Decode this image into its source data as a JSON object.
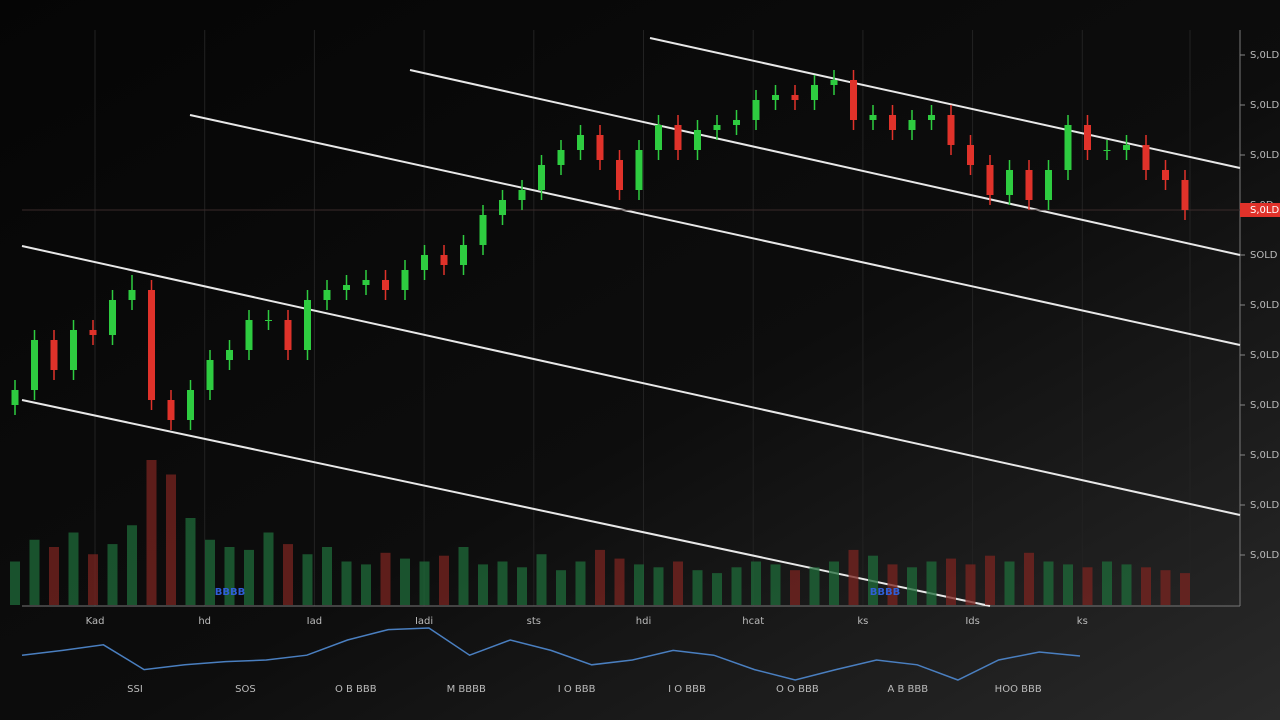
{
  "chart_data": {
    "type": "candlestick",
    "open": [
      40,
      43,
      53,
      47,
      55,
      54,
      61,
      63,
      41,
      37,
      43,
      49,
      51,
      57,
      57,
      51,
      61,
      63,
      64,
      65,
      63,
      67,
      70,
      68,
      72,
      78,
      81,
      83,
      88,
      91,
      94,
      89,
      83,
      91,
      96,
      91,
      95,
      96,
      97,
      101,
      102,
      101,
      104,
      105,
      97,
      98,
      95,
      97,
      98,
      92,
      88,
      82,
      87,
      81,
      87,
      96,
      91,
      91,
      92,
      87,
      85
    ],
    "high": [
      45,
      55,
      55,
      57,
      57,
      63,
      66,
      65,
      43,
      45,
      51,
      53,
      59,
      59,
      59,
      63,
      65,
      66,
      67,
      67,
      69,
      72,
      72,
      74,
      80,
      83,
      85,
      90,
      93,
      96,
      96,
      91,
      93,
      98,
      98,
      97,
      98,
      99,
      103,
      104,
      104,
      106,
      107,
      107,
      100,
      100,
      99,
      100,
      100,
      94,
      90,
      89,
      89,
      89,
      98,
      98,
      93,
      94,
      94,
      89,
      87
    ],
    "low": [
      38,
      41,
      45,
      45,
      52,
      52,
      59,
      39,
      35,
      35,
      41,
      47,
      49,
      55,
      49,
      49,
      59,
      61,
      62,
      61,
      61,
      65,
      66,
      66,
      70,
      76,
      79,
      81,
      86,
      89,
      87,
      81,
      81,
      89,
      89,
      89,
      93,
      94,
      95,
      99,
      99,
      99,
      102,
      95,
      95,
      93,
      93,
      95,
      90,
      86,
      80,
      80,
      79,
      79,
      85,
      89,
      89,
      89,
      85,
      83,
      77
    ],
    "close": [
      43,
      53,
      47,
      55,
      54,
      61,
      63,
      41,
      37,
      43,
      49,
      51,
      57,
      57,
      51,
      61,
      63,
      64,
      65,
      63,
      67,
      70,
      68,
      72,
      78,
      81,
      83,
      88,
      91,
      94,
      89,
      83,
      91,
      96,
      91,
      95,
      96,
      97,
      101,
      102,
      101,
      104,
      105,
      97,
      98,
      95,
      97,
      98,
      92,
      88,
      82,
      87,
      81,
      87,
      96,
      91,
      91,
      92,
      87,
      85,
      79
    ],
    "up_color": "#2ecc40",
    "down_color": "#e0322a",
    "ylim": [
      0,
      115
    ],
    "yticks": [
      {
        "value": 110,
        "label": "S,0LD"
      },
      {
        "value": 100,
        "label": "S,0LD"
      },
      {
        "value": 90,
        "label": "S,0LD"
      },
      {
        "value": 80,
        "label": "S,0D"
      },
      {
        "value": 70,
        "label": "SOLD"
      },
      {
        "value": 60,
        "label": "S,0LD"
      },
      {
        "value": 50,
        "label": "S,0LD"
      },
      {
        "value": 40,
        "label": "S,0LD"
      },
      {
        "value": 30,
        "label": "S,0LD"
      },
      {
        "value": 20,
        "label": "S,0LD"
      },
      {
        "value": 10,
        "label": "S,0LD"
      }
    ],
    "current_price_label": "S,0LD",
    "volume": {
      "values": [
        30,
        45,
        40,
        50,
        35,
        42,
        55,
        100,
        90,
        60,
        45,
        40,
        38,
        50,
        42,
        35,
        40,
        30,
        28,
        36,
        32,
        30,
        34,
        40,
        28,
        30,
        26,
        35,
        24,
        30,
        38,
        32,
        28,
        26,
        30,
        24,
        22,
        26,
        30,
        28,
        24,
        26,
        30,
        38,
        34,
        28,
        26,
        30,
        32,
        28,
        34,
        30,
        36,
        30,
        28,
        26,
        30,
        28,
        26,
        24,
        22
      ],
      "ylim": [
        0,
        100
      ]
    },
    "x_labels": [
      "Kad",
      "hd",
      "Iad",
      "Iadi",
      "sts",
      "hdi",
      "hcat",
      "ks",
      "Ids",
      "ks"
    ],
    "bottom_labels": [
      "SSI",
      "SOS",
      "O B BBB",
      "M BBBB",
      "I O BBB",
      "I O BBB",
      "O O BBB",
      "A B BBB",
      "HOO BBB"
    ],
    "markers": [
      "BBBB",
      "BBBB"
    ],
    "indicator": {
      "color": "#4a7fc0",
      "values": [
        56,
        62,
        69,
        38,
        44,
        48,
        50,
        56,
        75,
        88,
        90,
        56,
        75,
        62,
        44,
        50,
        62,
        56,
        38,
        25,
        38,
        50,
        44,
        25,
        50,
        60,
        55
      ],
      "ylim": [
        0,
        100
      ]
    }
  }
}
